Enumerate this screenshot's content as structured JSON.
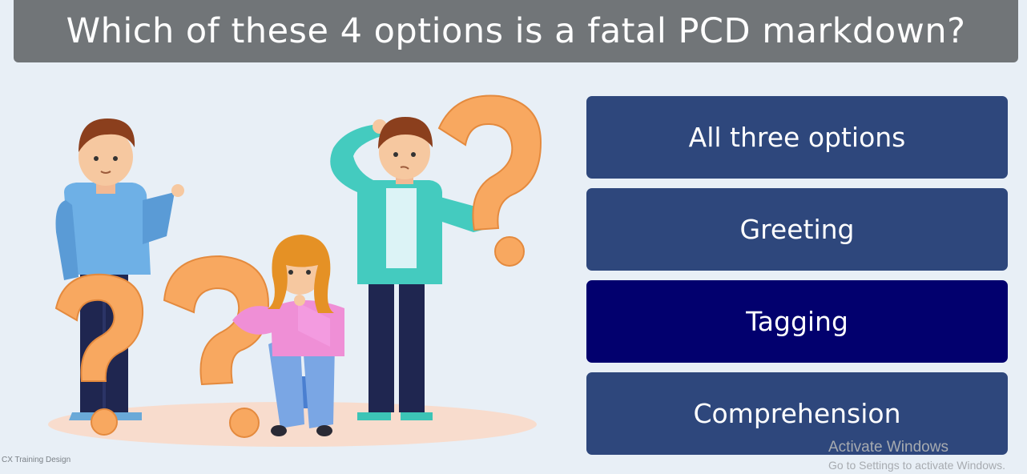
{
  "question": {
    "title": "Which of these 4 options is a fatal PCD markdown?"
  },
  "options": [
    {
      "label": "All three options",
      "selected": false
    },
    {
      "label": "Greeting",
      "selected": false
    },
    {
      "label": "Tagging",
      "selected": true
    },
    {
      "label": "Comprehension",
      "selected": false
    }
  ],
  "watermark": {
    "line1": "Activate Windows",
    "line2": "Go to Settings to activate Windows."
  },
  "footer": {
    "credit": "CX Training Design"
  },
  "colors": {
    "title_bar": "#717578",
    "option_default": "#2e477c",
    "option_selected": "#02006e",
    "background": "#e8eff6"
  }
}
